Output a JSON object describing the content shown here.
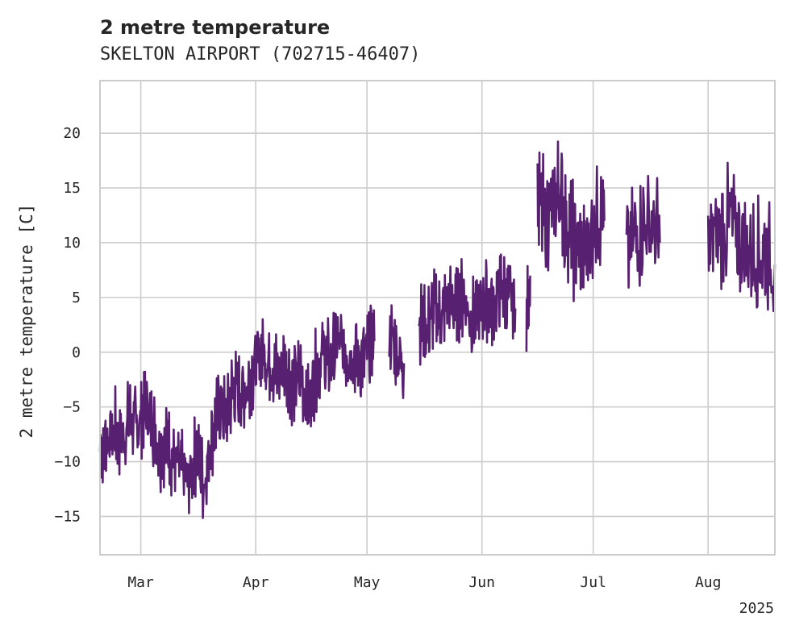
{
  "chart_data": {
    "type": "line",
    "title": "2 metre temperature",
    "subtitle": "SKELTON AIRPORT (702715-46407)",
    "ylabel": "2 metre temperature [C]",
    "xlabel": "",
    "year_label": "2025",
    "xlim": [
      "2025-02-18",
      "2025-08-19"
    ],
    "ylim": [
      -18.5,
      24.8
    ],
    "grid": true,
    "legend": "none",
    "x_ticks": [
      {
        "date": "2025-03-01",
        "label": "Mar"
      },
      {
        "date": "2025-04-01",
        "label": "Apr"
      },
      {
        "date": "2025-05-01",
        "label": "May"
      },
      {
        "date": "2025-06-01",
        "label": "Jun"
      },
      {
        "date": "2025-07-01",
        "label": "Jul"
      },
      {
        "date": "2025-08-01",
        "label": "Aug"
      }
    ],
    "y_ticks": [
      -15,
      -10,
      -5,
      0,
      5,
      10,
      15,
      20
    ],
    "y_tick_labels": [
      "−15",
      "−10",
      "−5",
      "0",
      "5",
      "10",
      "15",
      "20"
    ],
    "colors": {
      "line": "#582070",
      "grid": "#cccccc",
      "text": "#262626"
    },
    "series": [
      {
        "segments": [
          {
            "dates": [
              "2025-02-18",
              "2025-02-20",
              "2025-02-22",
              "2025-02-24",
              "2025-02-26",
              "2025-02-28",
              "2025-03-02",
              "2025-03-04",
              "2025-03-06",
              "2025-03-08",
              "2025-03-10",
              "2025-03-12",
              "2025-03-14",
              "2025-03-16",
              "2025-03-18",
              "2025-03-20",
              "2025-03-22",
              "2025-03-24",
              "2025-03-26",
              "2025-03-28",
              "2025-03-30",
              "2025-04-01",
              "2025-04-03",
              "2025-04-05",
              "2025-04-07",
              "2025-04-09",
              "2025-04-11",
              "2025-04-13",
              "2025-04-15",
              "2025-04-17",
              "2025-04-19",
              "2025-04-21",
              "2025-04-23",
              "2025-04-25",
              "2025-04-27",
              "2025-04-29",
              "2025-05-01",
              "2025-05-03"
            ],
            "values": [
              -9,
              -8,
              -7,
              -8,
              -6,
              -7,
              -5,
              -6,
              -9,
              -8,
              -10,
              -11,
              -12,
              -9,
              -12,
              -8,
              -5,
              -6,
              -3,
              -4,
              -3,
              -1,
              0,
              -1,
              -2,
              -1,
              -3,
              -2,
              -5,
              -2,
              0,
              -1,
              1,
              0,
              0,
              -1,
              0,
              1
            ]
          },
          {
            "dates": [
              "2025-05-07",
              "2025-05-09",
              "2025-05-11"
            ],
            "values": [
              2,
              0,
              -1
            ]
          },
          {
            "dates": [
              "2025-05-15",
              "2025-05-17",
              "2025-05-19",
              "2025-05-21",
              "2025-05-23",
              "2025-05-25",
              "2025-05-27",
              "2025-05-29",
              "2025-05-31",
              "2025-06-02",
              "2025-06-04",
              "2025-06-06",
              "2025-06-08",
              "2025-06-10"
            ],
            "values": [
              3,
              2,
              4,
              3,
              5,
              4,
              5,
              3,
              4,
              5,
              4,
              6,
              5,
              4
            ]
          },
          {
            "dates": [
              "2025-06-13",
              "2025-06-14"
            ],
            "values": [
              3,
              7
            ]
          },
          {
            "dates": [
              "2025-06-16",
              "2025-06-18",
              "2025-06-20",
              "2025-06-22",
              "2025-06-24",
              "2025-06-26",
              "2025-06-28",
              "2025-06-30",
              "2025-07-02",
              "2025-07-04"
            ],
            "values": [
              14,
              12,
              13,
              15,
              11,
              10,
              9,
              10,
              13,
              12
            ]
          },
          {
            "dates": [
              "2025-07-10",
              "2025-07-13",
              "2025-07-16",
              "2025-07-19"
            ],
            "values": [
              9,
              11,
              12,
              10
            ]
          },
          {
            "dates": [
              "2025-08-01",
              "2025-08-04",
              "2025-08-07",
              "2025-08-10",
              "2025-08-13",
              "2025-08-16",
              "2025-08-19"
            ],
            "values": [
              10,
              11,
              12,
              10,
              9,
              9,
              8
            ]
          }
        ]
      }
    ]
  }
}
